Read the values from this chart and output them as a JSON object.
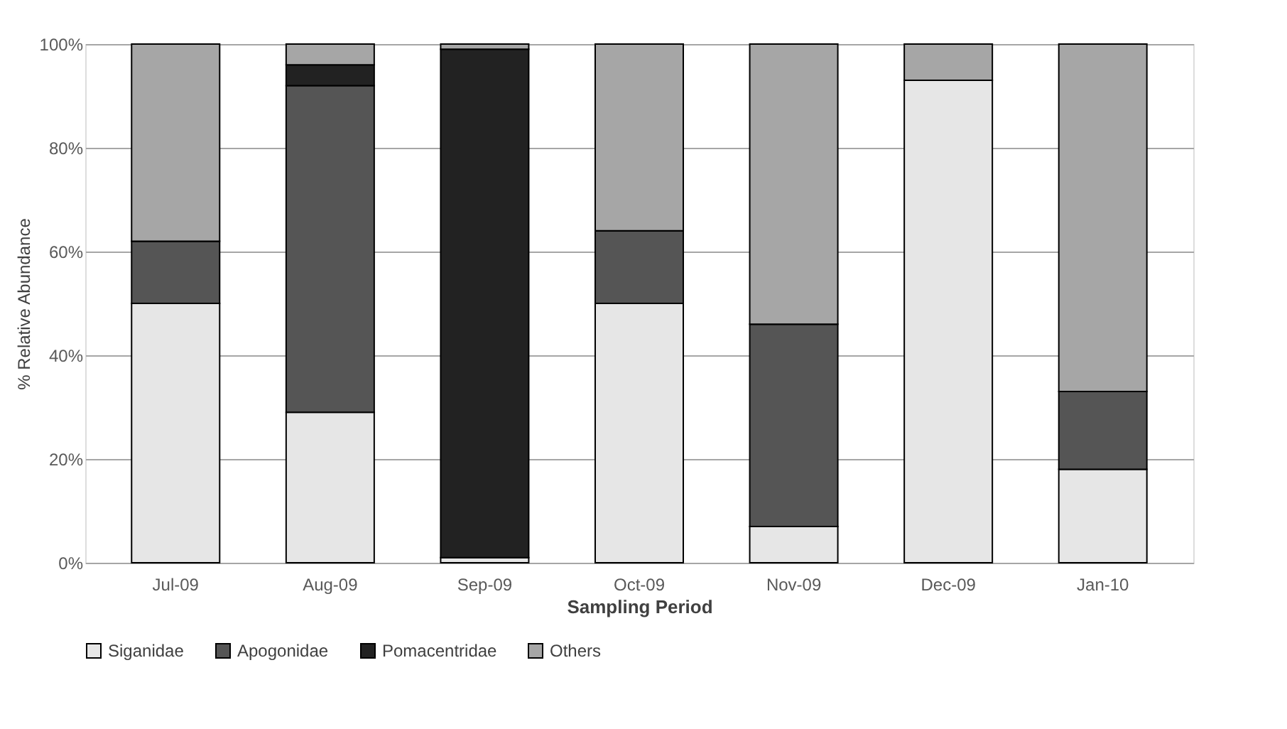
{
  "chart_data": {
    "type": "bar",
    "stacked": true,
    "xlabel": "Sampling Period",
    "ylabel": "% Relative Abundance",
    "categories": [
      "Jul-09",
      "Aug-09",
      "Sep-09",
      "Oct-09",
      "Nov-09",
      "Dec-09",
      "Jan-10"
    ],
    "series": [
      {
        "name": "Siganidae",
        "color": "#e6e6e6",
        "values": [
          50,
          29,
          1,
          50,
          7,
          93,
          18
        ]
      },
      {
        "name": "Apogonidae",
        "color": "#555555",
        "values": [
          12,
          63,
          0,
          14,
          39,
          0,
          15
        ]
      },
      {
        "name": "Pomacentridae",
        "color": "#222222",
        "values": [
          0,
          4,
          98,
          0,
          0,
          0,
          0
        ]
      },
      {
        "name": "Others",
        "color": "#a6a6a6",
        "values": [
          38,
          4,
          1,
          36,
          54,
          7,
          67
        ]
      }
    ],
    "ylim": [
      0,
      100
    ],
    "yticks": [
      {
        "value": 0,
        "label": "0%"
      },
      {
        "value": 20,
        "label": "20%"
      },
      {
        "value": 40,
        "label": "40%"
      },
      {
        "value": 60,
        "label": "60%"
      },
      {
        "value": 80,
        "label": "80%"
      },
      {
        "value": 100,
        "label": "100%"
      }
    ],
    "grid": "y",
    "legend": "bottom"
  }
}
